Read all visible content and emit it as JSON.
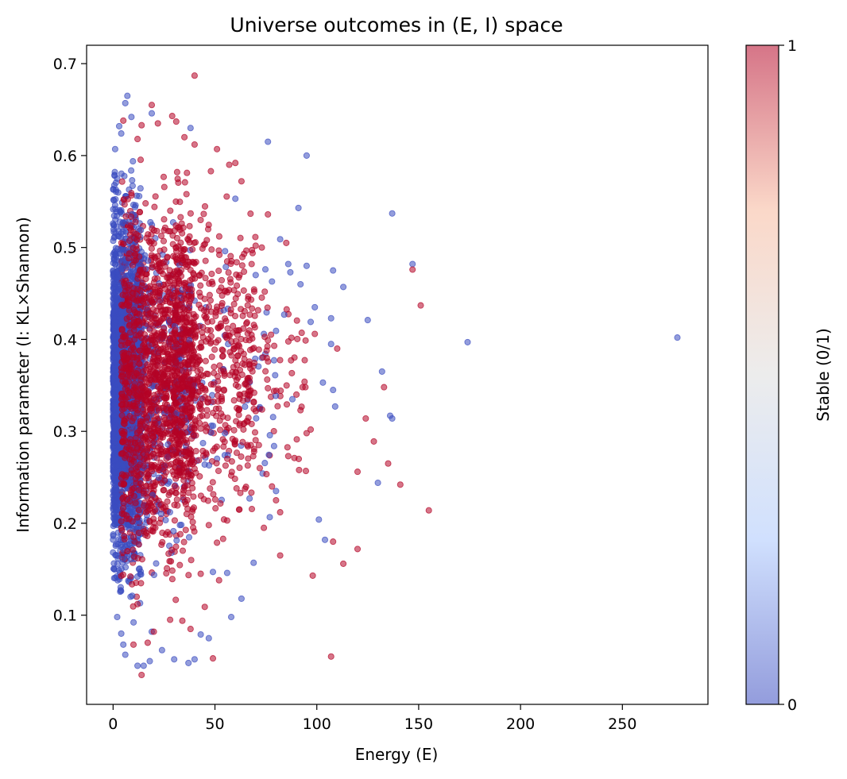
{
  "chart_data": {
    "type": "scatter",
    "title": "Universe outcomes in (E, I) space",
    "xlabel": "Energy (E)",
    "ylabel": "Information parameter (I: KL×Shannon)",
    "xlim": [
      -13,
      292
    ],
    "ylim": [
      0.003,
      0.72
    ],
    "xticks": [
      0,
      50,
      100,
      150,
      200,
      250
    ],
    "yticks": [
      0.1,
      0.2,
      0.3,
      0.4,
      0.5,
      0.6,
      0.7
    ],
    "xtick_labels": [
      "0",
      "50",
      "100",
      "150",
      "200",
      "250"
    ],
    "ytick_labels": [
      "0.1",
      "0.2",
      "0.3",
      "0.4",
      "0.5",
      "0.6",
      "0.7"
    ],
    "grid": false,
    "marker_alpha": 0.55,
    "colorbar": {
      "label": "Stable (0/1)",
      "cmap": "coolwarm",
      "min_label": "0",
      "max_label": "1",
      "color_0": "#3b4cc0",
      "color_mid": "#dddddd",
      "color_1": "#b40426"
    },
    "series": [
      {
        "stable": 0,
        "color": "#3b4cc0",
        "points": [
          [
            277,
            0.402
          ],
          [
            174,
            0.397
          ],
          [
            137,
            0.537
          ],
          [
            147,
            0.482
          ],
          [
            136,
            0.317
          ],
          [
            137,
            0.314
          ],
          [
            132,
            0.365
          ],
          [
            130,
            0.244
          ],
          [
            125,
            0.421
          ],
          [
            113,
            0.457
          ],
          [
            108,
            0.475
          ],
          [
            109,
            0.327
          ],
          [
            108,
            0.345
          ],
          [
            107,
            0.395
          ],
          [
            107,
            0.423
          ],
          [
            103,
            0.353
          ],
          [
            104,
            0.182
          ],
          [
            101,
            0.204
          ],
          [
            99,
            0.435
          ],
          [
            97,
            0.419
          ],
          [
            95,
            0.48
          ],
          [
            95,
            0.6
          ],
          [
            91,
            0.543
          ],
          [
            92,
            0.46
          ],
          [
            88,
            0.335
          ],
          [
            87,
            0.473
          ],
          [
            86,
            0.482
          ],
          [
            84,
            0.427
          ],
          [
            82,
            0.509
          ],
          [
            80,
            0.235
          ],
          [
            78,
            0.463
          ],
          [
            76,
            0.615
          ],
          [
            74,
            0.406
          ],
          [
            73,
            0.38
          ],
          [
            70,
            0.47
          ],
          [
            69,
            0.157
          ],
          [
            67,
            0.227
          ],
          [
            63,
            0.118
          ],
          [
            60,
            0.553
          ],
          [
            58,
            0.098
          ],
          [
            56,
            0.146
          ],
          [
            55,
            0.496
          ],
          [
            49,
            0.147
          ],
          [
            47,
            0.075
          ],
          [
            43,
            0.079
          ],
          [
            40,
            0.052
          ],
          [
            38,
            0.63
          ],
          [
            37,
            0.048
          ],
          [
            30,
            0.052
          ],
          [
            24,
            0.062
          ],
          [
            19,
            0.646
          ],
          [
            19,
            0.082
          ],
          [
            18,
            0.05
          ],
          [
            15,
            0.045
          ],
          [
            12,
            0.045
          ],
          [
            7,
            0.665
          ],
          [
            6,
            0.657
          ],
          [
            6,
            0.057
          ],
          [
            5,
            0.068
          ],
          [
            4,
            0.08
          ],
          [
            2,
            0.098
          ],
          [
            1,
            0.607
          ],
          [
            3,
            0.632
          ],
          [
            9,
            0.642
          ],
          [
            4,
            0.624
          ],
          [
            2,
            0.575
          ],
          [
            1,
            0.546
          ],
          [
            0,
            0.526
          ]
        ],
        "cloud": [
          {
            "x_range": [
              0,
              14
            ],
            "y_range": [
              0.07,
              0.62
            ],
            "count": 2200
          },
          {
            "x_range": [
              10,
              38
            ],
            "y_range": [
              0.1,
              0.6
            ],
            "count": 300
          },
          {
            "x_range": [
              30,
              80
            ],
            "y_range": [
              0.14,
              0.55
            ],
            "count": 80
          }
        ]
      },
      {
        "stable": 1,
        "color": "#b40426",
        "points": [
          [
            40,
            0.687
          ],
          [
            19,
            0.655
          ],
          [
            29,
            0.643
          ],
          [
            31,
            0.637
          ],
          [
            14,
            0.633
          ],
          [
            5,
            0.638
          ],
          [
            12,
            0.618
          ],
          [
            22,
            0.635
          ],
          [
            35,
            0.62
          ],
          [
            40,
            0.612
          ],
          [
            51,
            0.607
          ],
          [
            60,
            0.592
          ],
          [
            63,
            0.572
          ],
          [
            57,
            0.59
          ],
          [
            48,
            0.583
          ],
          [
            76,
            0.536
          ],
          [
            85,
            0.505
          ],
          [
            70,
            0.502
          ],
          [
            68,
            0.482
          ],
          [
            73,
            0.5
          ],
          [
            147,
            0.476
          ],
          [
            151,
            0.437
          ],
          [
            155,
            0.214
          ],
          [
            141,
            0.242
          ],
          [
            135,
            0.265
          ],
          [
            133,
            0.348
          ],
          [
            128,
            0.289
          ],
          [
            124,
            0.314
          ],
          [
            120,
            0.256
          ],
          [
            120,
            0.172
          ],
          [
            113,
            0.156
          ],
          [
            110,
            0.39
          ],
          [
            108,
            0.18
          ],
          [
            107,
            0.055
          ],
          [
            98,
            0.143
          ],
          [
            99,
            0.406
          ],
          [
            97,
            0.302
          ],
          [
            95,
            0.298
          ],
          [
            94,
            0.354
          ],
          [
            93,
            0.348
          ],
          [
            92,
            0.323
          ],
          [
            90,
            0.34
          ],
          [
            89,
            0.271
          ],
          [
            86,
            0.273
          ],
          [
            82,
            0.165
          ],
          [
            82,
            0.212
          ],
          [
            80,
            0.225
          ],
          [
            78,
            0.24
          ],
          [
            76,
            0.399
          ],
          [
            74,
            0.195
          ],
          [
            72,
            0.26
          ],
          [
            70,
            0.322
          ],
          [
            68,
            0.308
          ],
          [
            66,
            0.34
          ],
          [
            64,
            0.302
          ],
          [
            62,
            0.215
          ],
          [
            60,
            0.29
          ],
          [
            58,
            0.252
          ],
          [
            56,
            0.203
          ],
          [
            54,
            0.183
          ],
          [
            52,
            0.138
          ],
          [
            49,
            0.053
          ],
          [
            47,
            0.198
          ],
          [
            45,
            0.109
          ],
          [
            43,
            0.145
          ],
          [
            38,
            0.085
          ],
          [
            34,
            0.094
          ],
          [
            28,
            0.095
          ],
          [
            20,
            0.082
          ],
          [
            17,
            0.07
          ],
          [
            14,
            0.035
          ],
          [
            10,
            0.068
          ],
          [
            12,
            0.112
          ]
        ],
        "cloud": [
          {
            "x_range": [
              4,
              40
            ],
            "y_range": [
              0.09,
              0.62
            ],
            "count": 1700
          },
          {
            "x_range": [
              30,
              70
            ],
            "y_range": [
              0.15,
              0.6
            ],
            "count": 550
          },
          {
            "x_range": [
              60,
              95
            ],
            "y_range": [
              0.2,
              0.5
            ],
            "count": 90
          }
        ]
      }
    ]
  }
}
